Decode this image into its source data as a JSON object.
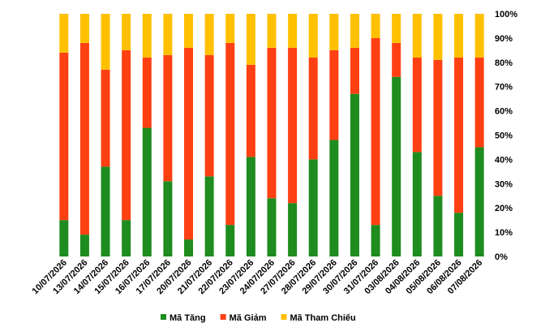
{
  "colors": {
    "tang": "#1e8c1e",
    "giam": "#ff4013",
    "tham_chieu": "#ffc000"
  },
  "chart_data": {
    "type": "bar",
    "stacked": true,
    "title": "",
    "xlabel": "",
    "ylabel": "",
    "ylim": [
      0,
      100
    ],
    "y_ticks": [
      "0%",
      "10%",
      "20%",
      "30%",
      "40%",
      "50%",
      "60%",
      "70%",
      "80%",
      "90%",
      "100%"
    ],
    "y_axis_position": "right",
    "grid": false,
    "legend_position": "bottom",
    "categories": [
      "10/07/2026",
      "13/07/2026",
      "14/07/2026",
      "15/07/2026",
      "16/07/2026",
      "17/07/2026",
      "20/07/2026",
      "21/07/2026",
      "22/07/2026",
      "23/07/2026",
      "24/07/2026",
      "27/07/2026",
      "28/07/2026",
      "29/07/2026",
      "30/07/2026",
      "31/07/2026",
      "03/08/2026",
      "04/08/2026",
      "05/08/2026",
      "06/08/2026",
      "07/08/2026"
    ],
    "series": [
      {
        "name": "Mã Tăng",
        "color_key": "tang",
        "values": [
          15,
          9,
          37,
          15,
          53,
          31,
          7,
          33,
          13,
          41,
          24,
          22,
          40,
          48,
          67,
          13,
          74,
          43,
          25,
          18,
          45
        ]
      },
      {
        "name": "Mã Giảm",
        "color_key": "giam",
        "values": [
          69,
          79,
          40,
          70,
          29,
          52,
          79,
          50,
          75,
          38,
          62,
          64,
          42,
          37,
          19,
          77,
          14,
          39,
          56,
          64,
          37
        ]
      },
      {
        "name": "Mã Tham Chiếu",
        "color_key": "tham_chieu",
        "values": [
          16,
          12,
          23,
          15,
          18,
          17,
          14,
          17,
          12,
          21,
          14,
          14,
          18,
          15,
          14,
          10,
          12,
          18,
          19,
          18,
          18
        ]
      }
    ]
  }
}
